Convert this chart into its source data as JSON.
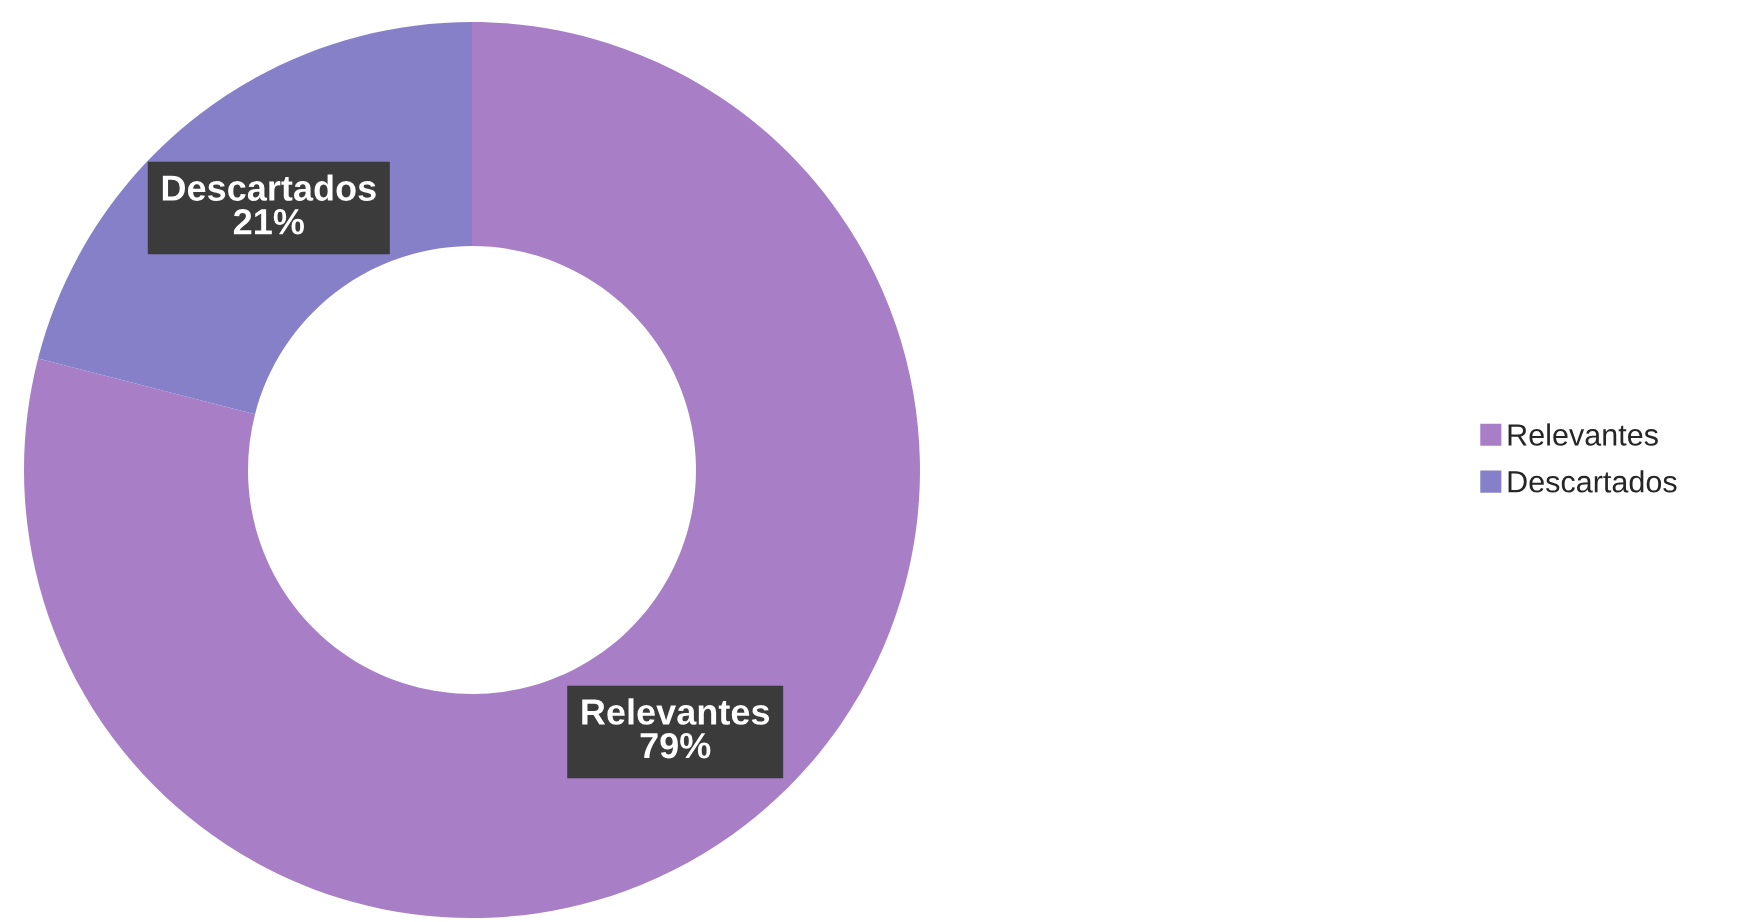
{
  "chart_data": {
    "type": "donut",
    "categories": [
      "Relevantes",
      "Descartados"
    ],
    "values": [
      79,
      21
    ],
    "colors": [
      "#a87fc6",
      "#8680c9"
    ],
    "value_labels": [
      "79%",
      "21%"
    ],
    "legend": "right"
  }
}
